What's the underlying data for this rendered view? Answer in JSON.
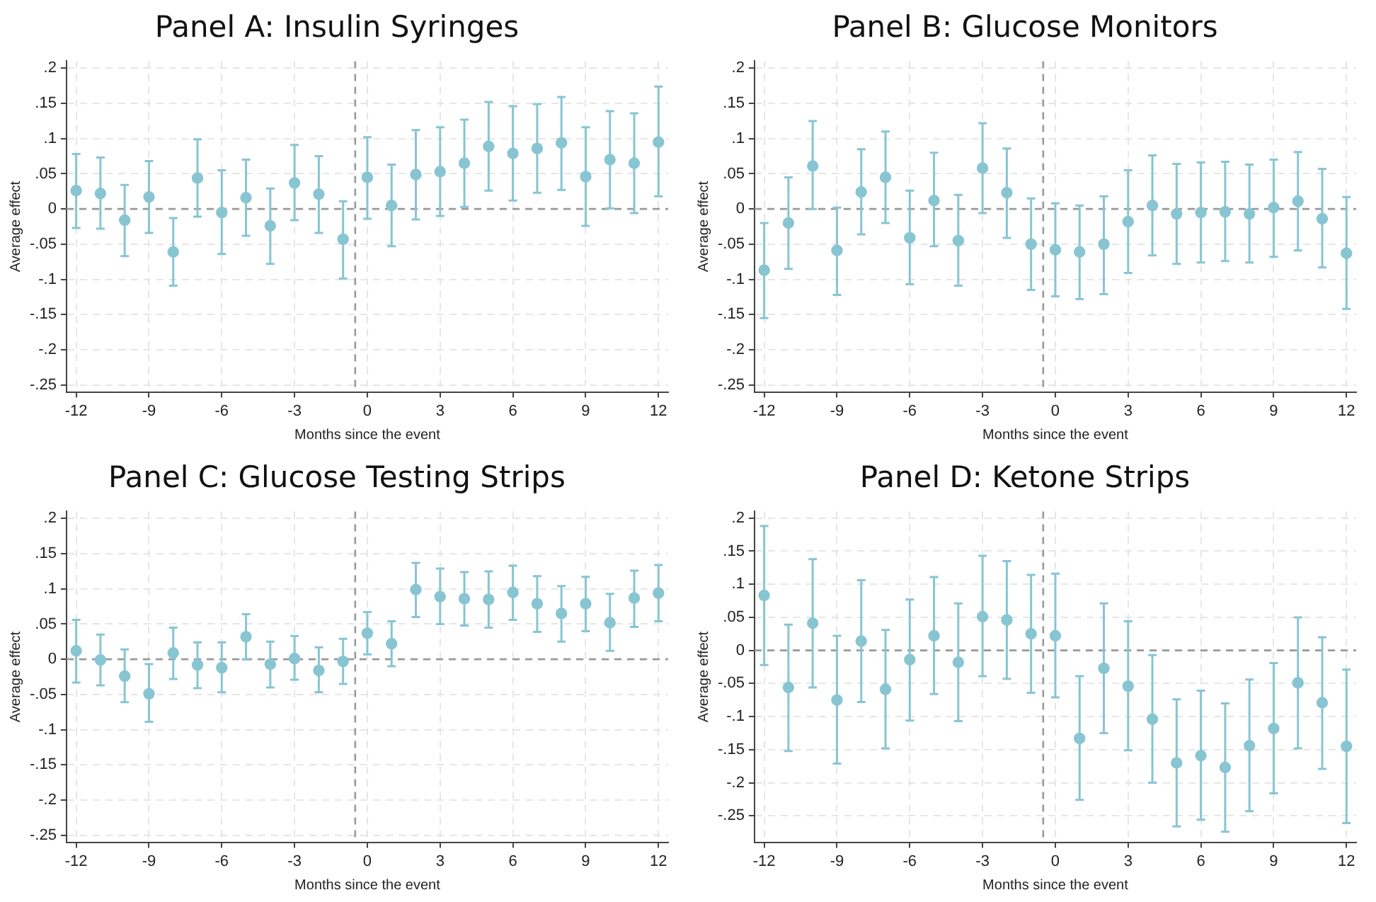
{
  "chart_data": [
    {
      "type": "scatter",
      "title": "Panel A: Insulin Syringes",
      "xlabel": "Months since the event",
      "ylabel": "Average effect",
      "xlim": [
        -12.4,
        12.4
      ],
      "ylim": [
        -0.26,
        0.21
      ],
      "xticks": [
        -12,
        -9,
        -6,
        -3,
        0,
        3,
        6,
        9,
        12
      ],
      "yticks": [
        {
          "value": 0.2,
          "label": ".2"
        },
        {
          "value": 0.15,
          "label": ".15"
        },
        {
          "value": 0.1,
          "label": ".1"
        },
        {
          "value": 0.05,
          "label": ".05"
        },
        {
          "value": 0,
          "label": "0"
        },
        {
          "value": -0.05,
          "label": "-.05"
        },
        {
          "value": -0.1,
          "label": "-.1"
        },
        {
          "value": -0.15,
          "label": "-.15"
        },
        {
          "value": -0.2,
          "label": "-.2"
        },
        {
          "value": -0.25,
          "label": "-.25"
        }
      ],
      "grid": true,
      "marker": "circle",
      "ref_lines": [
        {
          "axis": "x",
          "value": -0.5,
          "line_style": "dashed",
          "color": "#999999"
        },
        {
          "axis": "y",
          "value": 0,
          "line_style": "dashed",
          "color": "#999999"
        }
      ],
      "x": [
        -12,
        -11,
        -10,
        -9,
        -8,
        -7,
        -6,
        -5,
        -4,
        -3,
        -2,
        -1,
        0,
        1,
        2,
        3,
        4,
        5,
        6,
        7,
        8,
        9,
        10,
        11,
        12
      ],
      "series": [
        {
          "color": "#88c5d2",
          "values": [
            0.026,
            0.022,
            -0.016,
            0.017,
            -0.061,
            0.044,
            -0.005,
            0.016,
            -0.024,
            0.037,
            0.021,
            -0.043,
            0.045,
            0.005,
            0.049,
            0.053,
            0.065,
            0.089,
            0.079,
            0.086,
            0.094,
            0.046,
            0.07,
            0.065,
            0.095
          ],
          "errors": [
            [
              -0.027,
              0.078
            ],
            [
              -0.028,
              0.073
            ],
            [
              -0.067,
              0.034
            ],
            [
              -0.034,
              0.068
            ],
            [
              -0.109,
              -0.013
            ],
            [
              -0.011,
              0.099
            ],
            [
              -0.064,
              0.055
            ],
            [
              -0.038,
              0.07
            ],
            [
              -0.078,
              0.029
            ],
            [
              -0.016,
              0.091
            ],
            [
              -0.034,
              0.075
            ],
            [
              -0.099,
              0.011
            ],
            [
              -0.014,
              0.102
            ],
            [
              -0.053,
              0.063
            ],
            [
              -0.015,
              0.112
            ],
            [
              -0.01,
              0.116
            ],
            [
              0.003,
              0.127
            ],
            [
              0.026,
              0.152
            ],
            [
              0.012,
              0.146
            ],
            [
              0.023,
              0.149
            ],
            [
              0.027,
              0.159
            ],
            [
              -0.024,
              0.116
            ],
            [
              0.001,
              0.139
            ],
            [
              -0.006,
              0.136
            ],
            [
              0.018,
              0.174
            ]
          ]
        }
      ]
    },
    {
      "type": "scatter",
      "title": "Panel B: Glucose Monitors",
      "xlabel": "Months since the event",
      "ylabel": "Average effect",
      "xlim": [
        -12.4,
        12.4
      ],
      "ylim": [
        -0.26,
        0.21
      ],
      "xticks": [
        -12,
        -9,
        -6,
        -3,
        0,
        3,
        6,
        9,
        12
      ],
      "yticks": [
        {
          "value": 0.2,
          "label": ".2"
        },
        {
          "value": 0.15,
          "label": ".15"
        },
        {
          "value": 0.1,
          "label": ".1"
        },
        {
          "value": 0.05,
          "label": ".05"
        },
        {
          "value": 0,
          "label": "0"
        },
        {
          "value": -0.05,
          "label": "-.05"
        },
        {
          "value": -0.1,
          "label": "-.1"
        },
        {
          "value": -0.15,
          "label": "-.15"
        },
        {
          "value": -0.2,
          "label": "-.2"
        },
        {
          "value": -0.25,
          "label": "-.25"
        }
      ],
      "grid": true,
      "marker": "circle",
      "ref_lines": [
        {
          "axis": "x",
          "value": -0.5,
          "line_style": "dashed",
          "color": "#999999"
        },
        {
          "axis": "y",
          "value": 0,
          "line_style": "dashed",
          "color": "#999999"
        }
      ],
      "x": [
        -12,
        -11,
        -10,
        -9,
        -8,
        -7,
        -6,
        -5,
        -4,
        -3,
        -2,
        -1,
        0,
        1,
        2,
        3,
        4,
        5,
        6,
        7,
        8,
        9,
        10,
        11,
        12
      ],
      "series": [
        {
          "color": "#88c5d2",
          "values": [
            -0.087,
            -0.02,
            0.061,
            -0.059,
            0.024,
            0.045,
            -0.041,
            0.012,
            -0.045,
            0.058,
            0.023,
            -0.05,
            -0.058,
            -0.061,
            -0.05,
            -0.018,
            0.005,
            -0.007,
            -0.005,
            -0.004,
            -0.007,
            0.002,
            0.011,
            -0.014,
            -0.063
          ],
          "errors": [
            [
              -0.155,
              -0.02
            ],
            [
              -0.085,
              0.045
            ],
            [
              0,
              0.125
            ],
            [
              -0.122,
              0.002
            ],
            [
              -0.036,
              0.085
            ],
            [
              -0.02,
              0.11
            ],
            [
              -0.107,
              0.026
            ],
            [
              -0.053,
              0.08
            ],
            [
              -0.109,
              0.02
            ],
            [
              -0.006,
              0.122
            ],
            [
              -0.041,
              0.086
            ],
            [
              -0.115,
              0.015
            ],
            [
              -0.124,
              0.008
            ],
            [
              -0.128,
              0.005
            ],
            [
              -0.121,
              0.018
            ],
            [
              -0.091,
              0.055
            ],
            [
              -0.066,
              0.076
            ],
            [
              -0.078,
              0.064
            ],
            [
              -0.076,
              0.066
            ],
            [
              -0.074,
              0.067
            ],
            [
              -0.076,
              0.063
            ],
            [
              -0.068,
              0.07
            ],
            [
              -0.059,
              0.081
            ],
            [
              -0.083,
              0.057
            ],
            [
              -0.142,
              0.017
            ]
          ]
        }
      ]
    },
    {
      "type": "scatter",
      "title": "Panel C: Glucose Testing Strips",
      "xlabel": "Months since the event",
      "ylabel": "Average effect",
      "xlim": [
        -12.4,
        12.4
      ],
      "ylim": [
        -0.26,
        0.21
      ],
      "xticks": [
        -12,
        -9,
        -6,
        -3,
        0,
        3,
        6,
        9,
        12
      ],
      "yticks": [
        {
          "value": 0.2,
          "label": ".2"
        },
        {
          "value": 0.15,
          "label": ".15"
        },
        {
          "value": 0.1,
          "label": ".1"
        },
        {
          "value": 0.05,
          "label": ".05"
        },
        {
          "value": 0,
          "label": "0"
        },
        {
          "value": -0.05,
          "label": "-.05"
        },
        {
          "value": -0.1,
          "label": "-.1"
        },
        {
          "value": -0.15,
          "label": "-.15"
        },
        {
          "value": -0.2,
          "label": "-.2"
        },
        {
          "value": -0.25,
          "label": "-.25"
        }
      ],
      "grid": true,
      "marker": "circle",
      "ref_lines": [
        {
          "axis": "x",
          "value": -0.5,
          "line_style": "dashed",
          "color": "#999999"
        },
        {
          "axis": "y",
          "value": 0,
          "line_style": "dashed",
          "color": "#999999"
        }
      ],
      "x": [
        -12,
        -11,
        -10,
        -9,
        -8,
        -7,
        -6,
        -5,
        -4,
        -3,
        -2,
        -1,
        0,
        1,
        2,
        3,
        4,
        5,
        6,
        7,
        8,
        9,
        10,
        11,
        12
      ],
      "series": [
        {
          "color": "#88c5d2",
          "values": [
            0.012,
            -0.001,
            -0.024,
            -0.049,
            0.009,
            -0.008,
            -0.012,
            0.032,
            -0.007,
            0.001,
            -0.016,
            -0.003,
            0.037,
            0.022,
            0.099,
            0.089,
            0.086,
            0.085,
            0.095,
            0.079,
            0.065,
            0.079,
            0.052,
            0.087,
            0.094
          ],
          "errors": [
            [
              -0.033,
              0.056
            ],
            [
              -0.037,
              0.035
            ],
            [
              -0.061,
              0.014
            ],
            [
              -0.089,
              -0.007
            ],
            [
              -0.028,
              0.045
            ],
            [
              -0.041,
              0.024
            ],
            [
              -0.047,
              0.024
            ],
            [
              0,
              0.064
            ],
            [
              -0.04,
              0.025
            ],
            [
              -0.029,
              0.033
            ],
            [
              -0.047,
              0.017
            ],
            [
              -0.035,
              0.029
            ],
            [
              0.007,
              0.067
            ],
            [
              -0.01,
              0.054
            ],
            [
              0.06,
              0.137
            ],
            [
              0.05,
              0.129
            ],
            [
              0.048,
              0.124
            ],
            [
              0.045,
              0.125
            ],
            [
              0.056,
              0.133
            ],
            [
              0.039,
              0.118
            ],
            [
              0.025,
              0.104
            ],
            [
              0.04,
              0.117
            ],
            [
              0.012,
              0.093
            ],
            [
              0.046,
              0.126
            ],
            [
              0.054,
              0.134
            ]
          ]
        }
      ]
    },
    {
      "type": "scatter",
      "title": "Panel D: Ketone Strips",
      "xlabel": "Months since the event",
      "ylabel": "Average effect",
      "xlim": [
        -12.4,
        12.4
      ],
      "ylim": [
        -0.29,
        0.21
      ],
      "xticks": [
        -12,
        -9,
        -6,
        -3,
        0,
        3,
        6,
        9,
        12
      ],
      "yticks": [
        {
          "value": 0.2,
          "label": ".2"
        },
        {
          "value": 0.15,
          "label": ".15"
        },
        {
          "value": 0.1,
          "label": ".1"
        },
        {
          "value": 0.05,
          "label": ".05"
        },
        {
          "value": 0,
          "label": "0"
        },
        {
          "value": -0.05,
          "label": "-.05"
        },
        {
          "value": -0.1,
          "label": "-.1"
        },
        {
          "value": -0.15,
          "label": "-.15"
        },
        {
          "value": -0.2,
          "label": "-.2"
        },
        {
          "value": -0.25,
          "label": "-.25"
        }
      ],
      "grid": true,
      "marker": "circle",
      "ref_lines": [
        {
          "axis": "x",
          "value": -0.5,
          "line_style": "dashed",
          "color": "#999999"
        },
        {
          "axis": "y",
          "value": 0,
          "line_style": "dashed",
          "color": "#999999"
        }
      ],
      "x": [
        -12,
        -11,
        -10,
        -9,
        -8,
        -7,
        -6,
        -5,
        -4,
        -3,
        -2,
        -1,
        0,
        1,
        2,
        3,
        4,
        5,
        6,
        7,
        8,
        9,
        10,
        11,
        12
      ],
      "series": [
        {
          "color": "#88c5d2",
          "values": [
            0.083,
            -0.056,
            0.041,
            -0.075,
            0.014,
            -0.059,
            -0.014,
            0.022,
            -0.018,
            0.051,
            0.046,
            0.025,
            0.022,
            -0.133,
            -0.027,
            -0.054,
            -0.104,
            -0.17,
            -0.159,
            -0.177,
            -0.144,
            -0.118,
            -0.049,
            -0.079,
            -0.145
          ],
          "errors": [
            [
              -0.022,
              0.188
            ],
            [
              -0.152,
              0.039
            ],
            [
              -0.056,
              0.138
            ],
            [
              -0.171,
              0.022
            ],
            [
              -0.078,
              0.106
            ],
            [
              -0.148,
              0.031
            ],
            [
              -0.106,
              0.077
            ],
            [
              -0.066,
              0.111
            ],
            [
              -0.107,
              0.071
            ],
            [
              -0.039,
              0.143
            ],
            [
              -0.043,
              0.135
            ],
            [
              -0.064,
              0.114
            ],
            [
              -0.071,
              0.116
            ],
            [
              -0.226,
              -0.039
            ],
            [
              -0.125,
              0.071
            ],
            [
              -0.151,
              0.044
            ],
            [
              -0.2,
              -0.007
            ],
            [
              -0.266,
              -0.074
            ],
            [
              -0.256,
              -0.061
            ],
            [
              -0.274,
              -0.08
            ],
            [
              -0.243,
              -0.044
            ],
            [
              -0.216,
              -0.019
            ],
            [
              -0.148,
              0.05
            ],
            [
              -0.179,
              0.02
            ],
            [
              -0.261,
              -0.029
            ]
          ]
        }
      ]
    }
  ]
}
